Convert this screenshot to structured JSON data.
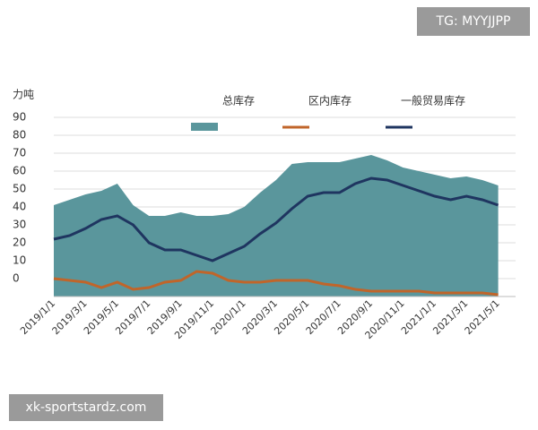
{
  "chart_data": {
    "type": "area-line",
    "y_label": "力吨",
    "categories": [
      "2019/1/1",
      null,
      "2019/3/1",
      null,
      "2019/5/1",
      null,
      "2019/7/1",
      null,
      "2019/9/1",
      null,
      "2019/11/1",
      null,
      "2020/1/1",
      null,
      "2020/3/1",
      null,
      "2020/5/1",
      null,
      "2020/7/1",
      null,
      "2020/9/1",
      null,
      "2020/11/1",
      null,
      "2021/1/1",
      null,
      "2021/3/1",
      null,
      "2021/5/1"
    ],
    "series": [
      {
        "name": "总库存",
        "color": "#5a969c",
        "kind": "area",
        "values": [
          41,
          44,
          47,
          49,
          53,
          41,
          35,
          35,
          37,
          35,
          35,
          36,
          40,
          48,
          55,
          64,
          65,
          65,
          65,
          67,
          69,
          66,
          62,
          60,
          58,
          56,
          57,
          55,
          52
        ]
      },
      {
        "name": "区内库存",
        "color": "#c0652a",
        "kind": "line",
        "values": [
          0,
          -1,
          -2,
          -5,
          -2,
          -6,
          -5,
          -2,
          -1,
          4,
          3,
          -1,
          -2,
          -2,
          -1,
          -1,
          -1,
          -3,
          -4,
          -6,
          -7,
          -7,
          -7,
          -7,
          -8,
          -8,
          -8,
          -8,
          -9
        ]
      },
      {
        "name": "一般贸易库存",
        "color": "#1f3560",
        "kind": "line",
        "values": [
          22,
          24,
          28,
          33,
          35,
          30,
          20,
          16,
          16,
          13,
          10,
          14,
          18,
          25,
          31,
          39,
          46,
          48,
          48,
          53,
          56,
          55,
          52,
          49,
          46,
          44,
          46,
          44,
          41
        ]
      }
    ],
    "ylim": [
      -10,
      90
    ],
    "yticks": [
      0,
      10,
      20,
      30,
      40,
      50,
      60,
      70,
      80,
      90
    ],
    "grid": true
  },
  "watermarks": {
    "top": "TG: MYYJJPP",
    "bottom": "xk-sportstardz.com"
  }
}
